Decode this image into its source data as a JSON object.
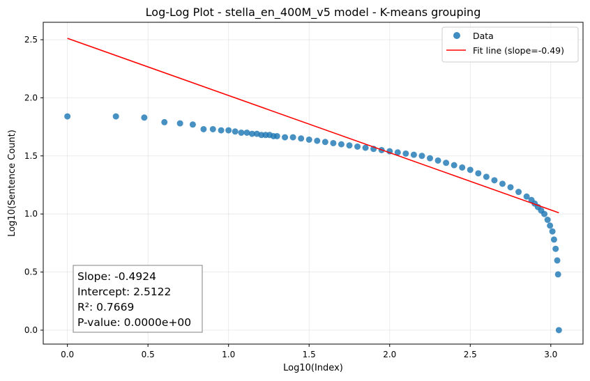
{
  "chart_data": {
    "type": "scatter",
    "title": "Log-Log Plot - stella_en_400M_v5 model - K-means grouping",
    "xlabel": "Log10(Index)",
    "ylabel": "Log10(Sentence Count)",
    "xlim": [
      -0.15,
      3.2
    ],
    "ylim": [
      -0.12,
      2.65
    ],
    "xticks": [
      0.0,
      0.5,
      1.0,
      1.5,
      2.0,
      2.5,
      3.0
    ],
    "xtick_labels": [
      "0.0",
      "0.5",
      "1.0",
      "1.5",
      "2.0",
      "2.5",
      "3.0"
    ],
    "yticks": [
      0.0,
      0.5,
      1.0,
      1.5,
      2.0,
      2.5
    ],
    "ytick_labels": [
      "0.0",
      "0.5",
      "1.0",
      "1.5",
      "2.0",
      "2.5"
    ],
    "grid": true,
    "legend_position": "top-right",
    "series": [
      {
        "name": "Data",
        "kind": "scatter",
        "color": "#1f77b4",
        "points": [
          [
            0.0,
            1.84
          ],
          [
            0.301,
            1.84
          ],
          [
            0.477,
            1.83
          ],
          [
            0.602,
            1.79
          ],
          [
            0.699,
            1.78
          ],
          [
            0.778,
            1.77
          ],
          [
            0.845,
            1.73
          ],
          [
            0.903,
            1.73
          ],
          [
            0.954,
            1.72
          ],
          [
            1.0,
            1.72
          ],
          [
            1.041,
            1.71
          ],
          [
            1.079,
            1.7
          ],
          [
            1.114,
            1.7
          ],
          [
            1.146,
            1.69
          ],
          [
            1.176,
            1.69
          ],
          [
            1.204,
            1.68
          ],
          [
            1.23,
            1.68
          ],
          [
            1.255,
            1.68
          ],
          [
            1.279,
            1.67
          ],
          [
            1.301,
            1.67
          ],
          [
            1.35,
            1.66
          ],
          [
            1.4,
            1.66
          ],
          [
            1.45,
            1.65
          ],
          [
            1.5,
            1.64
          ],
          [
            1.55,
            1.63
          ],
          [
            1.6,
            1.62
          ],
          [
            1.65,
            1.61
          ],
          [
            1.7,
            1.6
          ],
          [
            1.75,
            1.59
          ],
          [
            1.8,
            1.58
          ],
          [
            1.85,
            1.57
          ],
          [
            1.9,
            1.56
          ],
          [
            1.95,
            1.55
          ],
          [
            2.0,
            1.54
          ],
          [
            2.05,
            1.53
          ],
          [
            2.1,
            1.52
          ],
          [
            2.15,
            1.51
          ],
          [
            2.2,
            1.5
          ],
          [
            2.25,
            1.48
          ],
          [
            2.3,
            1.46
          ],
          [
            2.35,
            1.44
          ],
          [
            2.4,
            1.42
          ],
          [
            2.45,
            1.4
          ],
          [
            2.5,
            1.38
          ],
          [
            2.55,
            1.35
          ],
          [
            2.6,
            1.32
          ],
          [
            2.65,
            1.29
          ],
          [
            2.7,
            1.26
          ],
          [
            2.75,
            1.23
          ],
          [
            2.8,
            1.19
          ],
          [
            2.85,
            1.15
          ],
          [
            2.88,
            1.12
          ],
          [
            2.9,
            1.09
          ],
          [
            2.92,
            1.06
          ],
          [
            2.94,
            1.03
          ],
          [
            2.96,
            1.0
          ],
          [
            2.98,
            0.95
          ],
          [
            2.995,
            0.9
          ],
          [
            3.01,
            0.85
          ],
          [
            3.02,
            0.78
          ],
          [
            3.03,
            0.7
          ],
          [
            3.04,
            0.6
          ],
          [
            3.045,
            0.48
          ],
          [
            3.05,
            0.0
          ]
        ]
      },
      {
        "name": "Fit line (slope=-0.49)",
        "kind": "line",
        "color": "#ff0000",
        "x": [
          0.0,
          3.05
        ],
        "y": [
          2.5122,
          1.0104
        ]
      }
    ],
    "annotation": {
      "lines": [
        "Slope: -0.4924",
        "Intercept: 2.5122",
        "R²: 0.7669",
        "P-value: 0.0000e+00"
      ]
    }
  }
}
